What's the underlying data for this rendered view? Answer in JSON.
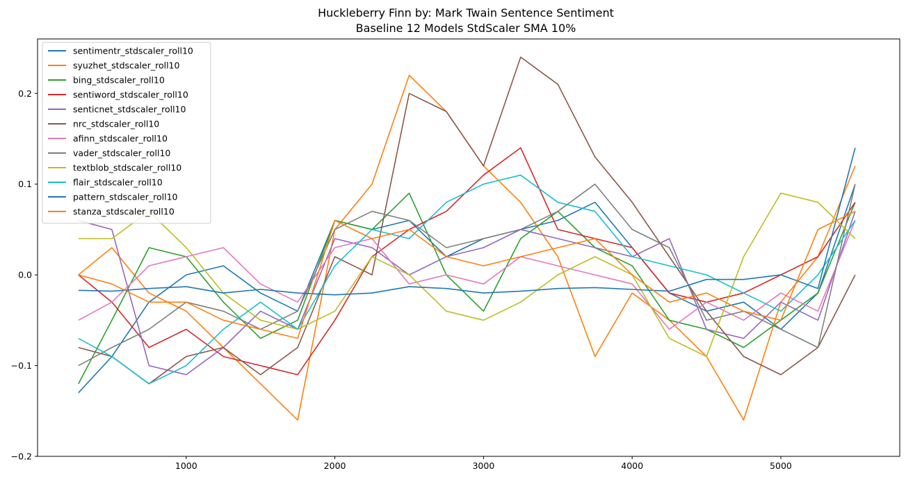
{
  "chart_data": {
    "type": "line",
    "title": "Huckleberry Finn by: Mark Twain Sentence Sentiment",
    "subtitle": "Baseline 12 Models StdScaler SMA 10%",
    "xlabel": "",
    "ylabel": "",
    "xlim": [
      0,
      5800
    ],
    "ylim": [
      -0.2,
      0.26
    ],
    "xticks": [
      1000,
      2000,
      3000,
      4000,
      5000
    ],
    "yticks": [
      -0.2,
      -0.1,
      0.0,
      0.1,
      0.2
    ],
    "xtick_labels": [
      "1000",
      "2000",
      "3000",
      "4000",
      "5000"
    ],
    "ytick_labels": [
      "−0.2",
      "−0.1",
      "0.0",
      "0.1",
      "0.2"
    ],
    "grid": false,
    "legend_position": "upper-left",
    "x": [
      275,
      500,
      750,
      1000,
      1250,
      1500,
      1750,
      2000,
      2250,
      2500,
      2750,
      3000,
      3250,
      3500,
      3750,
      4000,
      4250,
      4500,
      4750,
      5000,
      5250,
      5500
    ],
    "series": [
      {
        "name": "sentimentr_stdscaler_roll10",
        "color": "#1f77b4",
        "values": [
          -0.13,
          -0.09,
          -0.03,
          0.0,
          0.01,
          -0.02,
          -0.04,
          0.06,
          0.05,
          0.06,
          0.02,
          0.04,
          0.05,
          0.06,
          0.08,
          0.03,
          -0.02,
          -0.04,
          -0.03,
          -0.06,
          -0.02,
          0.1
        ]
      },
      {
        "name": "syuzhet_stdscaler_roll10",
        "color": "#ff7f0e",
        "values": [
          0.0,
          0.03,
          -0.02,
          -0.04,
          -0.08,
          -0.12,
          -0.16,
          0.05,
          0.1,
          0.22,
          0.18,
          0.12,
          0.08,
          0.02,
          -0.09,
          -0.02,
          -0.05,
          -0.09,
          -0.16,
          -0.03,
          0.02,
          0.12
        ]
      },
      {
        "name": "bing_stdscaler_roll10",
        "color": "#2ca02c",
        "values": [
          -0.12,
          -0.05,
          0.03,
          0.02,
          -0.03,
          -0.07,
          -0.05,
          0.06,
          0.05,
          0.09,
          0.0,
          -0.04,
          0.04,
          0.07,
          0.03,
          0.01,
          -0.05,
          -0.06,
          -0.08,
          -0.05,
          -0.02,
          0.08
        ]
      },
      {
        "name": "sentiword_stdscaler_roll10",
        "color": "#d62728",
        "values": [
          0.0,
          -0.03,
          -0.08,
          -0.06,
          -0.09,
          -0.1,
          -0.11,
          -0.05,
          0.02,
          0.05,
          0.07,
          0.11,
          0.14,
          0.05,
          0.04,
          0.03,
          -0.02,
          -0.03,
          -0.02,
          0.0,
          0.02,
          0.08
        ]
      },
      {
        "name": "senticnet_stdscaler_roll10",
        "color": "#9467bd",
        "values": [
          0.06,
          0.05,
          -0.1,
          -0.11,
          -0.08,
          -0.04,
          -0.06,
          0.04,
          0.03,
          0.0,
          0.02,
          0.03,
          0.05,
          0.04,
          0.03,
          0.02,
          0.04,
          -0.06,
          -0.07,
          -0.03,
          -0.05,
          0.07
        ]
      },
      {
        "name": "nrc_stdscaler_roll10",
        "color": "#8c564b",
        "values": [
          -0.08,
          -0.09,
          -0.12,
          -0.09,
          -0.08,
          -0.11,
          -0.08,
          0.02,
          0.0,
          0.2,
          0.18,
          0.12,
          0.24,
          0.21,
          0.13,
          0.08,
          0.02,
          -0.04,
          -0.09,
          -0.11,
          -0.08,
          0.0
        ]
      },
      {
        "name": "afinn_stdscaler_roll10",
        "color": "#e377c2",
        "values": [
          -0.05,
          -0.03,
          0.01,
          0.02,
          0.03,
          -0.01,
          -0.03,
          0.03,
          0.04,
          -0.01,
          0.0,
          -0.01,
          0.02,
          0.01,
          0.0,
          -0.01,
          -0.06,
          -0.03,
          -0.05,
          -0.02,
          -0.04,
          0.06
        ]
      },
      {
        "name": "vader_stdscaler_roll10",
        "color": "#7f7f7f",
        "values": [
          -0.1,
          -0.08,
          -0.06,
          -0.03,
          -0.04,
          -0.06,
          -0.04,
          0.05,
          0.07,
          0.06,
          0.03,
          0.04,
          0.05,
          0.07,
          0.1,
          0.05,
          0.03,
          -0.05,
          -0.04,
          -0.06,
          -0.08,
          0.1
        ]
      },
      {
        "name": "textblob_stdscaler_roll10",
        "color": "#bcbd22",
        "values": [
          0.04,
          0.04,
          0.07,
          0.03,
          -0.02,
          -0.05,
          -0.06,
          -0.04,
          0.02,
          0.0,
          -0.04,
          -0.05,
          -0.03,
          0.0,
          0.02,
          0.0,
          -0.07,
          -0.09,
          0.02,
          0.09,
          0.08,
          0.04
        ]
      },
      {
        "name": "flair_stdscaler_roll10",
        "color": "#17becf",
        "values": [
          -0.07,
          -0.09,
          -0.12,
          -0.1,
          -0.06,
          -0.03,
          -0.06,
          0.01,
          0.05,
          0.04,
          0.08,
          0.1,
          0.11,
          0.08,
          0.07,
          0.02,
          0.01,
          0.0,
          -0.02,
          -0.04,
          0.0,
          0.06
        ]
      },
      {
        "name": "pattern_stdscaler_roll10",
        "color": "#1f77b4",
        "values": [
          -0.017,
          -0.018,
          -0.015,
          -0.013,
          -0.02,
          -0.016,
          -0.02,
          -0.022,
          -0.02,
          -0.013,
          -0.015,
          -0.02,
          -0.018,
          -0.015,
          -0.014,
          -0.016,
          -0.018,
          -0.005,
          -0.005,
          0.0,
          -0.015,
          0.14
        ]
      },
      {
        "name": "stanza_stdscaler_roll10",
        "color": "#ff7f0e",
        "values": [
          0.0,
          -0.01,
          -0.03,
          -0.03,
          -0.05,
          -0.06,
          -0.07,
          0.06,
          0.04,
          0.05,
          0.02,
          0.01,
          0.02,
          0.03,
          0.04,
          0.0,
          -0.03,
          -0.02,
          -0.04,
          -0.05,
          0.05,
          0.07
        ]
      }
    ]
  }
}
